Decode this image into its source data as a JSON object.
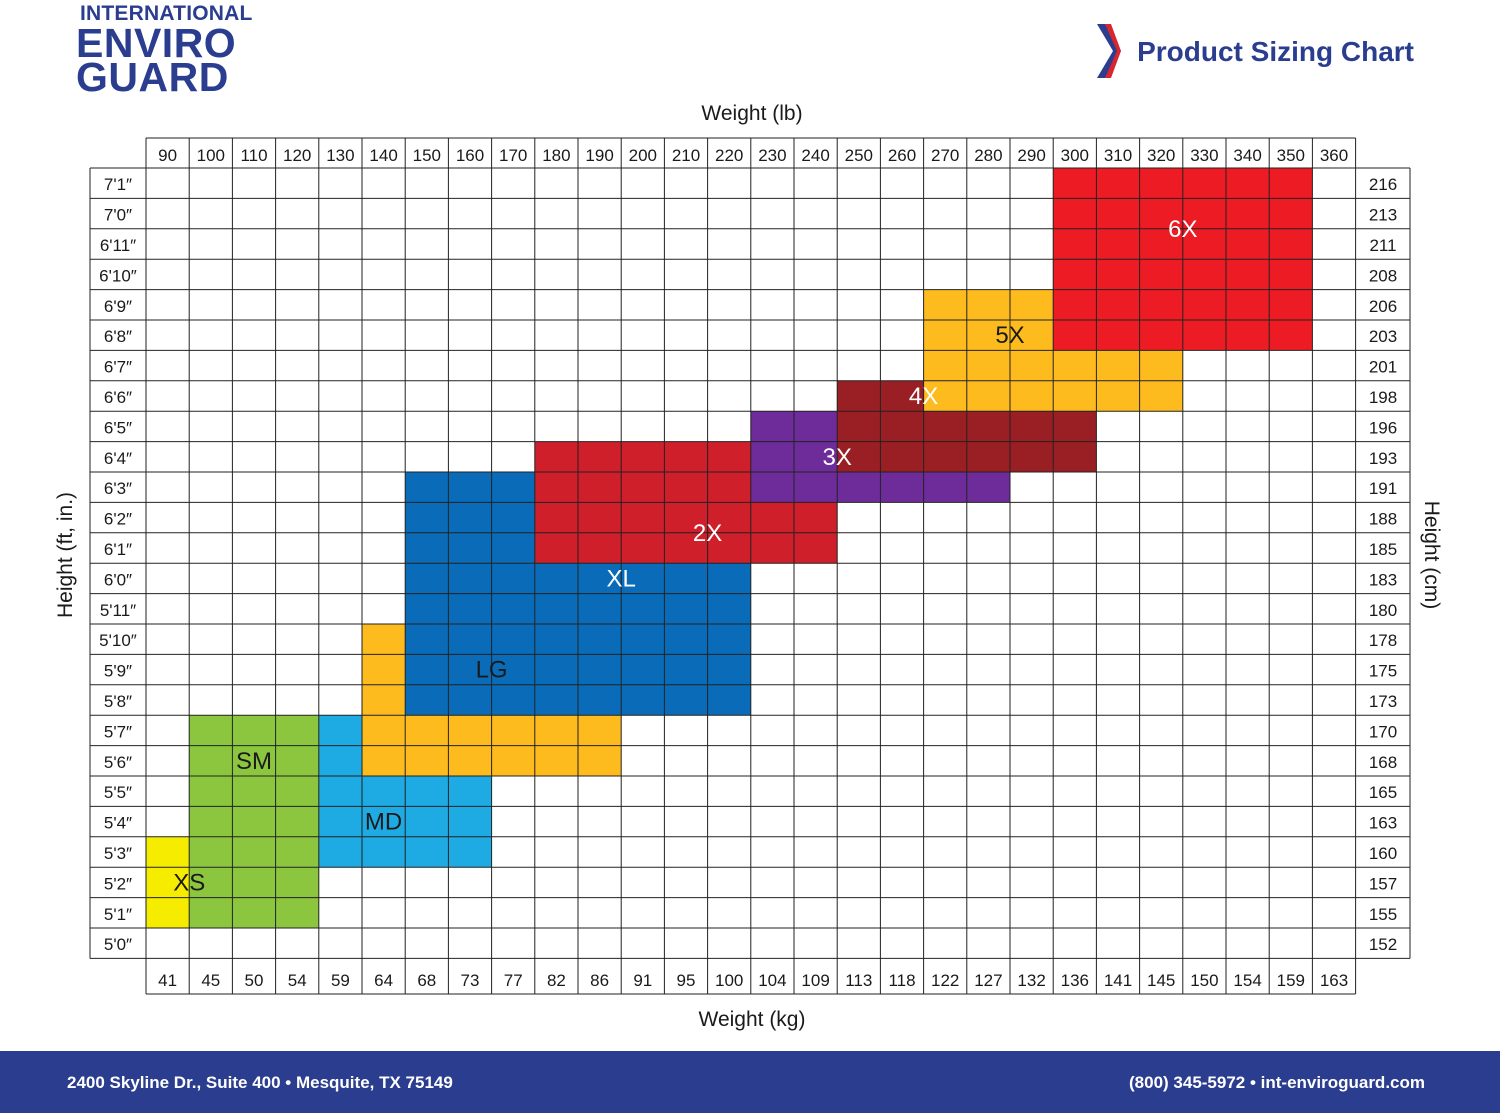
{
  "brand": {
    "line1": "INTERNATIONAL",
    "line2": "ENVIRO",
    "line3": "GUARD",
    "color": "#2b3d8f"
  },
  "header": {
    "title": "Product Sizing Chart",
    "chevron_icon": "chevron-right-icon"
  },
  "chart_data": {
    "type": "heatmap",
    "title": "Product Sizing Chart",
    "xlabel_top": "Weight (lb)",
    "xlabel_bottom": "Weight (kg)",
    "ylabel_left": "Height (ft, in.)",
    "ylabel_right": "Height (cm)",
    "weight_lb": [
      90,
      100,
      110,
      120,
      130,
      140,
      150,
      160,
      170,
      180,
      190,
      200,
      210,
      220,
      230,
      240,
      250,
      260,
      270,
      280,
      290,
      300,
      310,
      320,
      330,
      340,
      350,
      360
    ],
    "weight_kg": [
      "41",
      "45",
      "50",
      "54",
      "59",
      "64",
      "68",
      "73",
      "77",
      "82",
      "86",
      "91",
      "95",
      "100",
      "104",
      "109",
      "113",
      "118",
      "122",
      "127",
      "132",
      "136",
      "141",
      "145",
      "150",
      "154",
      "159",
      "163"
    ],
    "height_ft": [
      "7'1″",
      "7'0″",
      "6'11″",
      "6'10″",
      "6'9″",
      "6'8″",
      "6'7″",
      "6'6″",
      "6'5″",
      "6'4″",
      "6'3″",
      "6'2″",
      "6'1″",
      "6'0″",
      "5'11″",
      "5'10″",
      "5'9″",
      "5'8″",
      "5'7″",
      "5'6″",
      "5'5″",
      "5'4″",
      "5'3″",
      "5'2″",
      "5'1″",
      "5'0″"
    ],
    "height_cm": [
      "216",
      "213",
      "211",
      "208",
      "206",
      "203",
      "201",
      "198",
      "196",
      "193",
      "191",
      "188",
      "185",
      "183",
      "180",
      "178",
      "175",
      "173",
      "170",
      "168",
      "165",
      "163",
      "160",
      "157",
      "155",
      "152"
    ],
    "sizes": [
      {
        "name": "XS",
        "color": "#f5ec00",
        "text_color": "#1a1a1a",
        "weight_lb": [
          90,
          120
        ],
        "height_in": [
          60,
          63
        ]
      },
      {
        "name": "SM",
        "color": "#8cc63f",
        "text_color": "#1a1a1a",
        "weight_lb": [
          100,
          130
        ],
        "height_in": [
          60,
          67
        ]
      },
      {
        "name": "MD",
        "color": "#1eabe3",
        "text_color": "#1a1a1a",
        "weight_lb": [
          130,
          170
        ],
        "height_in": [
          62,
          67
        ]
      },
      {
        "name": "LG",
        "color": "#fdbb1e",
        "text_color": "#1a1a1a",
        "weight_lb": [
          140,
          200
        ],
        "height_in": [
          65,
          70
        ]
      },
      {
        "name": "XL",
        "color": "#0a6cb8",
        "text_color": "#ffffff",
        "weight_lb": [
          150,
          230
        ],
        "height_in": [
          67,
          75
        ]
      },
      {
        "name": "2X",
        "color": "#ce1f2b",
        "text_color": "#ffffff",
        "weight_lb": [
          180,
          250
        ],
        "height_in": [
          72,
          76
        ]
      },
      {
        "name": "3X",
        "color": "#6d2c9a",
        "text_color": "#ffffff",
        "weight_lb": [
          230,
          290
        ],
        "height_in": [
          74,
          77
        ]
      },
      {
        "name": "4X",
        "color": "#9a1f24",
        "text_color": "#ffffff",
        "weight_lb": [
          250,
          310
        ],
        "height_in": [
          75,
          78
        ]
      },
      {
        "name": "5X",
        "color": "#fdbb1e",
        "text_color": "#1a1a1a",
        "weight_lb": [
          270,
          330
        ],
        "height_in": [
          77,
          81
        ]
      },
      {
        "name": "6X",
        "color": "#ed1c24",
        "text_color": "#ffffff",
        "weight_lb": [
          300,
          360
        ],
        "height_in": [
          79,
          85
        ]
      }
    ],
    "grid": true
  },
  "footer": {
    "address": "2400 Skyline Dr., Suite 400 • Mesquite, TX 75149",
    "contact": "(800) 345-5972 • int-enviroguard.com"
  }
}
